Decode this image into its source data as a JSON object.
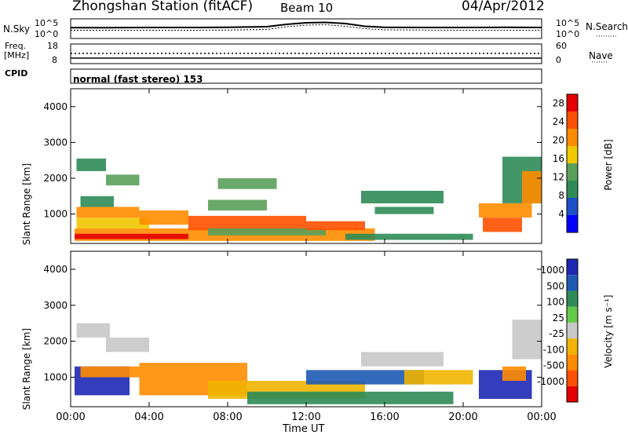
{
  "header": {
    "station": "Zhongshan Station (fitACF)",
    "beam": "Beam 10",
    "date": "04/Apr/2012"
  },
  "summary_panels": {
    "nsky_label": "N.Sky",
    "nsearch_label": "N.Search",
    "nsky_ticks": [
      "10^5",
      "10^0"
    ],
    "nsearch_ticks": [
      "10^5",
      "10^0"
    ],
    "freq_label_1": "Freq.",
    "freq_label_2": "[MHz]",
    "freq_ticks": [
      "18",
      "8"
    ],
    "nave_label": "Nave",
    "nave_ticks": [
      "60",
      "0"
    ],
    "cpid_label": "CPID",
    "cpid_value": "normal (fast stereo) 153"
  },
  "colors": {
    "power_scale": [
      "#0000ff",
      "#1e50c8",
      "#2e8b57",
      "#5aa05a",
      "#f0c800",
      "#ff8c00",
      "#ff5000",
      "#e60000"
    ],
    "velocity_scale": [
      "#1e28b4",
      "#1e5ab4",
      "#2e8b57",
      "#64c84b",
      "#c8c8c8",
      "#f0b400",
      "#ff8c00",
      "#ff5000",
      "#e60000"
    ]
  },
  "chart_data": [
    {
      "type": "heatmap",
      "quantity": "Power",
      "xlabel": "Time UT",
      "ylabel": "Slant Range [km]",
      "xlim": [
        0,
        24
      ],
      "ylim": [
        180,
        4500
      ],
      "x_ticks": [
        "00:00",
        "04:00",
        "08:00",
        "12:00",
        "16:00",
        "20:00",
        "00:00"
      ],
      "y_ticks": [
        1000,
        2000,
        3000,
        4000
      ],
      "colorbar_label": "Power [dB]",
      "colorbar_ticks": [
        4,
        8,
        12,
        16,
        20,
        24,
        28
      ],
      "colorbar_range": [
        0,
        30
      ],
      "regions": [
        {
          "t": [
            0.2,
            15.5
          ],
          "r": [
            250,
            600
          ],
          "value": 20
        },
        {
          "t": [
            0.2,
            6.0
          ],
          "r": [
            300,
            450
          ],
          "value": 28
        },
        {
          "t": [
            0.3,
            4.0
          ],
          "r": [
            600,
            900
          ],
          "value": 18
        },
        {
          "t": [
            0.3,
            3.5
          ],
          "r": [
            900,
            1200
          ],
          "value": 22
        },
        {
          "t": [
            0.5,
            2.2
          ],
          "r": [
            1200,
            1500
          ],
          "value": 10
        },
        {
          "t": [
            0.3,
            1.8
          ],
          "r": [
            2200,
            2550
          ],
          "value": 9
        },
        {
          "t": [
            1.8,
            3.5
          ],
          "r": [
            1800,
            2100
          ],
          "value": 12
        },
        {
          "t": [
            3.5,
            6.0
          ],
          "r": [
            700,
            1100
          ],
          "value": 20
        },
        {
          "t": [
            6.0,
            12.0
          ],
          "r": [
            550,
            950
          ],
          "value": 24
        },
        {
          "t": [
            7.0,
            13.0
          ],
          "r": [
            400,
            600
          ],
          "value": 14
        },
        {
          "t": [
            7.0,
            10.0
          ],
          "r": [
            1100,
            1400
          ],
          "value": 14
        },
        {
          "t": [
            7.5,
            10.5
          ],
          "r": [
            1700,
            2000
          ],
          "value": 12
        },
        {
          "t": [
            12.0,
            15.0
          ],
          "r": [
            550,
            800
          ],
          "value": 24
        },
        {
          "t": [
            14.8,
            19.0
          ],
          "r": [
            1300,
            1650
          ],
          "value": 10
        },
        {
          "t": [
            15.5,
            18.5
          ],
          "r": [
            1000,
            1200
          ],
          "value": 10
        },
        {
          "t": [
            14.0,
            20.5
          ],
          "r": [
            280,
            450
          ],
          "value": 8
        },
        {
          "t": [
            21.0,
            23.0
          ],
          "r": [
            500,
            900
          ],
          "value": 26
        },
        {
          "t": [
            20.8,
            23.5
          ],
          "r": [
            900,
            1300
          ],
          "value": 22
        },
        {
          "t": [
            22.0,
            24.0
          ],
          "r": [
            1300,
            2600
          ],
          "value": 10
        },
        {
          "t": [
            23.0,
            24.0
          ],
          "r": [
            1300,
            2200
          ],
          "value": 20
        }
      ]
    },
    {
      "type": "heatmap",
      "quantity": "Velocity",
      "xlabel": "Time UT",
      "ylabel": "Slant Range [km]",
      "xlim": [
        0,
        24
      ],
      "ylim": [
        180,
        4500
      ],
      "x_ticks": [
        "00:00",
        "04:00",
        "08:00",
        "12:00",
        "16:00",
        "20:00",
        "00:00"
      ],
      "y_ticks": [
        1000,
        2000,
        3000,
        4000
      ],
      "colorbar_label": "Velocity [m s⁻¹]",
      "colorbar_ticks": [
        "1000",
        "500",
        "100",
        "25",
        "-25",
        "-100",
        "-500",
        "-1000"
      ],
      "regions": [
        {
          "t": [
            0.2,
            3.0
          ],
          "r": [
            500,
            1300
          ],
          "value": 800
        },
        {
          "t": [
            0.5,
            3.5
          ],
          "r": [
            1000,
            1300
          ],
          "value": -300
        },
        {
          "t": [
            0.3,
            2.0
          ],
          "r": [
            2100,
            2500
          ],
          "value": 0
        },
        {
          "t": [
            1.8,
            4.0
          ],
          "r": [
            1700,
            2100
          ],
          "value": 0
        },
        {
          "t": [
            3.5,
            9.0
          ],
          "r": [
            500,
            1400
          ],
          "value": -200
        },
        {
          "t": [
            7.0,
            15.0
          ],
          "r": [
            400,
            900
          ],
          "value": -80
        },
        {
          "t": [
            9.0,
            19.5
          ],
          "r": [
            250,
            600
          ],
          "value": 60
        },
        {
          "t": [
            12.0,
            18.0
          ],
          "r": [
            800,
            1200
          ],
          "value": 120
        },
        {
          "t": [
            14.8,
            19.0
          ],
          "r": [
            1300,
            1700
          ],
          "value": 0
        },
        {
          "t": [
            17.0,
            20.5
          ],
          "r": [
            800,
            1200
          ],
          "value": -60
        },
        {
          "t": [
            20.8,
            23.5
          ],
          "r": [
            400,
            1200
          ],
          "value": 700
        },
        {
          "t": [
            22.0,
            23.2
          ],
          "r": [
            900,
            1300
          ],
          "value": -300
        },
        {
          "t": [
            22.5,
            24.0
          ],
          "r": [
            1500,
            2600
          ],
          "value": 0
        }
      ]
    },
    {
      "type": "line",
      "quantity": "N.Sky / N.Search",
      "x": [
        0,
        2,
        4,
        6,
        8,
        10,
        11,
        12,
        13,
        14,
        15,
        16,
        18,
        20,
        22,
        24
      ],
      "series": [
        {
          "name": "N.Sky",
          "values": [
            0.55,
            0.55,
            0.56,
            0.56,
            0.57,
            0.6,
            0.72,
            0.8,
            0.82,
            0.76,
            0.62,
            0.57,
            0.56,
            0.56,
            0.57,
            0.56
          ]
        },
        {
          "name": "N.Search",
          "values": [
            0.42,
            0.42,
            0.42,
            0.42,
            0.43,
            0.46,
            0.6,
            0.68,
            0.7,
            0.62,
            0.5,
            0.44,
            0.43,
            0.42,
            0.42,
            0.42
          ]
        }
      ]
    }
  ]
}
